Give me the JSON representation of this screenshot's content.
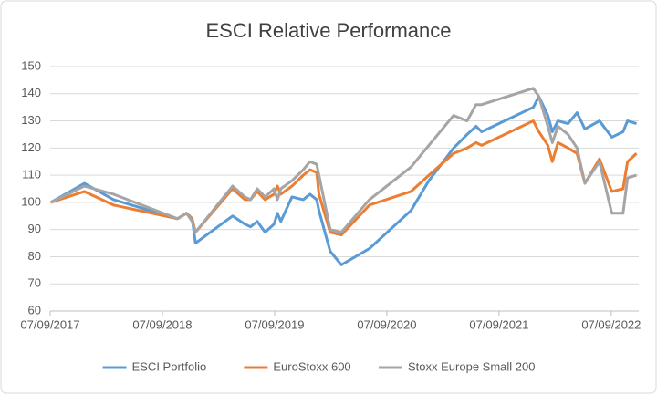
{
  "chart_data": {
    "type": "line",
    "title": "ESCI Relative Performance",
    "x": [
      2017.69,
      2017.99,
      2018.25,
      2018.82,
      2018.9,
      2018.95,
      2018.98,
      2019.31,
      2019.42,
      2019.47,
      2019.53,
      2019.6,
      2019.68,
      2019.71,
      2019.74,
      2019.84,
      2019.94,
      2020.0,
      2020.06,
      2020.08,
      2020.18,
      2020.28,
      2020.53,
      2020.9,
      2021.06,
      2021.28,
      2021.4,
      2021.48,
      2021.53,
      2021.99,
      2022.04,
      2022.12,
      2022.16,
      2022.21,
      2022.3,
      2022.38,
      2022.45,
      2022.58,
      2022.69,
      2022.79,
      2022.83,
      2022.91
    ],
    "series": [
      {
        "name": "ESCI Portfolio",
        "color": "#5b9bd5",
        "values": [
          100,
          107,
          101,
          94,
          96,
          94,
          85,
          95,
          92,
          91,
          93,
          89,
          92,
          96,
          93,
          102,
          101,
          103,
          101,
          97,
          82,
          77,
          83,
          97,
          108,
          120,
          125,
          128,
          126,
          135,
          139,
          132,
          126,
          130,
          129,
          133,
          127,
          130,
          124,
          126,
          130,
          129
        ]
      },
      {
        "name": "EuroStoxx 600",
        "color": "#ed7d31",
        "values": [
          100,
          104,
          99,
          94,
          96,
          94,
          89,
          105,
          101,
          101,
          104,
          101,
          103,
          106,
          103,
          106,
          110,
          112,
          111,
          103,
          89,
          88,
          99,
          104,
          110,
          118,
          120,
          122,
          121,
          130,
          126,
          121,
          115,
          122,
          120,
          118,
          107,
          116,
          104,
          105,
          115,
          118
        ]
      },
      {
        "name": "Stoxx Europe Small 200",
        "color": "#a5a5a5",
        "values": [
          100,
          106,
          103,
          94,
          96,
          93,
          89,
          106,
          102,
          101,
          105,
          102,
          105,
          101,
          105,
          108,
          112,
          115,
          114,
          110,
          90,
          89,
          101,
          113,
          121,
          132,
          130,
          136,
          136,
          142,
          139,
          128,
          122,
          128,
          125,
          120,
          107,
          115,
          96,
          96,
          109,
          110
        ]
      }
    ],
    "xlim": [
      2017.685,
      2022.93
    ],
    "xticks": [
      {
        "value": 2017.685,
        "label": "07/09/2017"
      },
      {
        "value": 2018.685,
        "label": "07/09/2018"
      },
      {
        "value": 2019.685,
        "label": "07/09/2019"
      },
      {
        "value": 2020.685,
        "label": "07/09/2020"
      },
      {
        "value": 2021.685,
        "label": "07/09/2021"
      },
      {
        "value": 2022.685,
        "label": "07/09/2022"
      }
    ],
    "ylim": [
      60,
      150
    ],
    "yticks": [
      60,
      70,
      80,
      90,
      100,
      110,
      120,
      130,
      140,
      150
    ],
    "grid": true,
    "legend": "bottom"
  }
}
